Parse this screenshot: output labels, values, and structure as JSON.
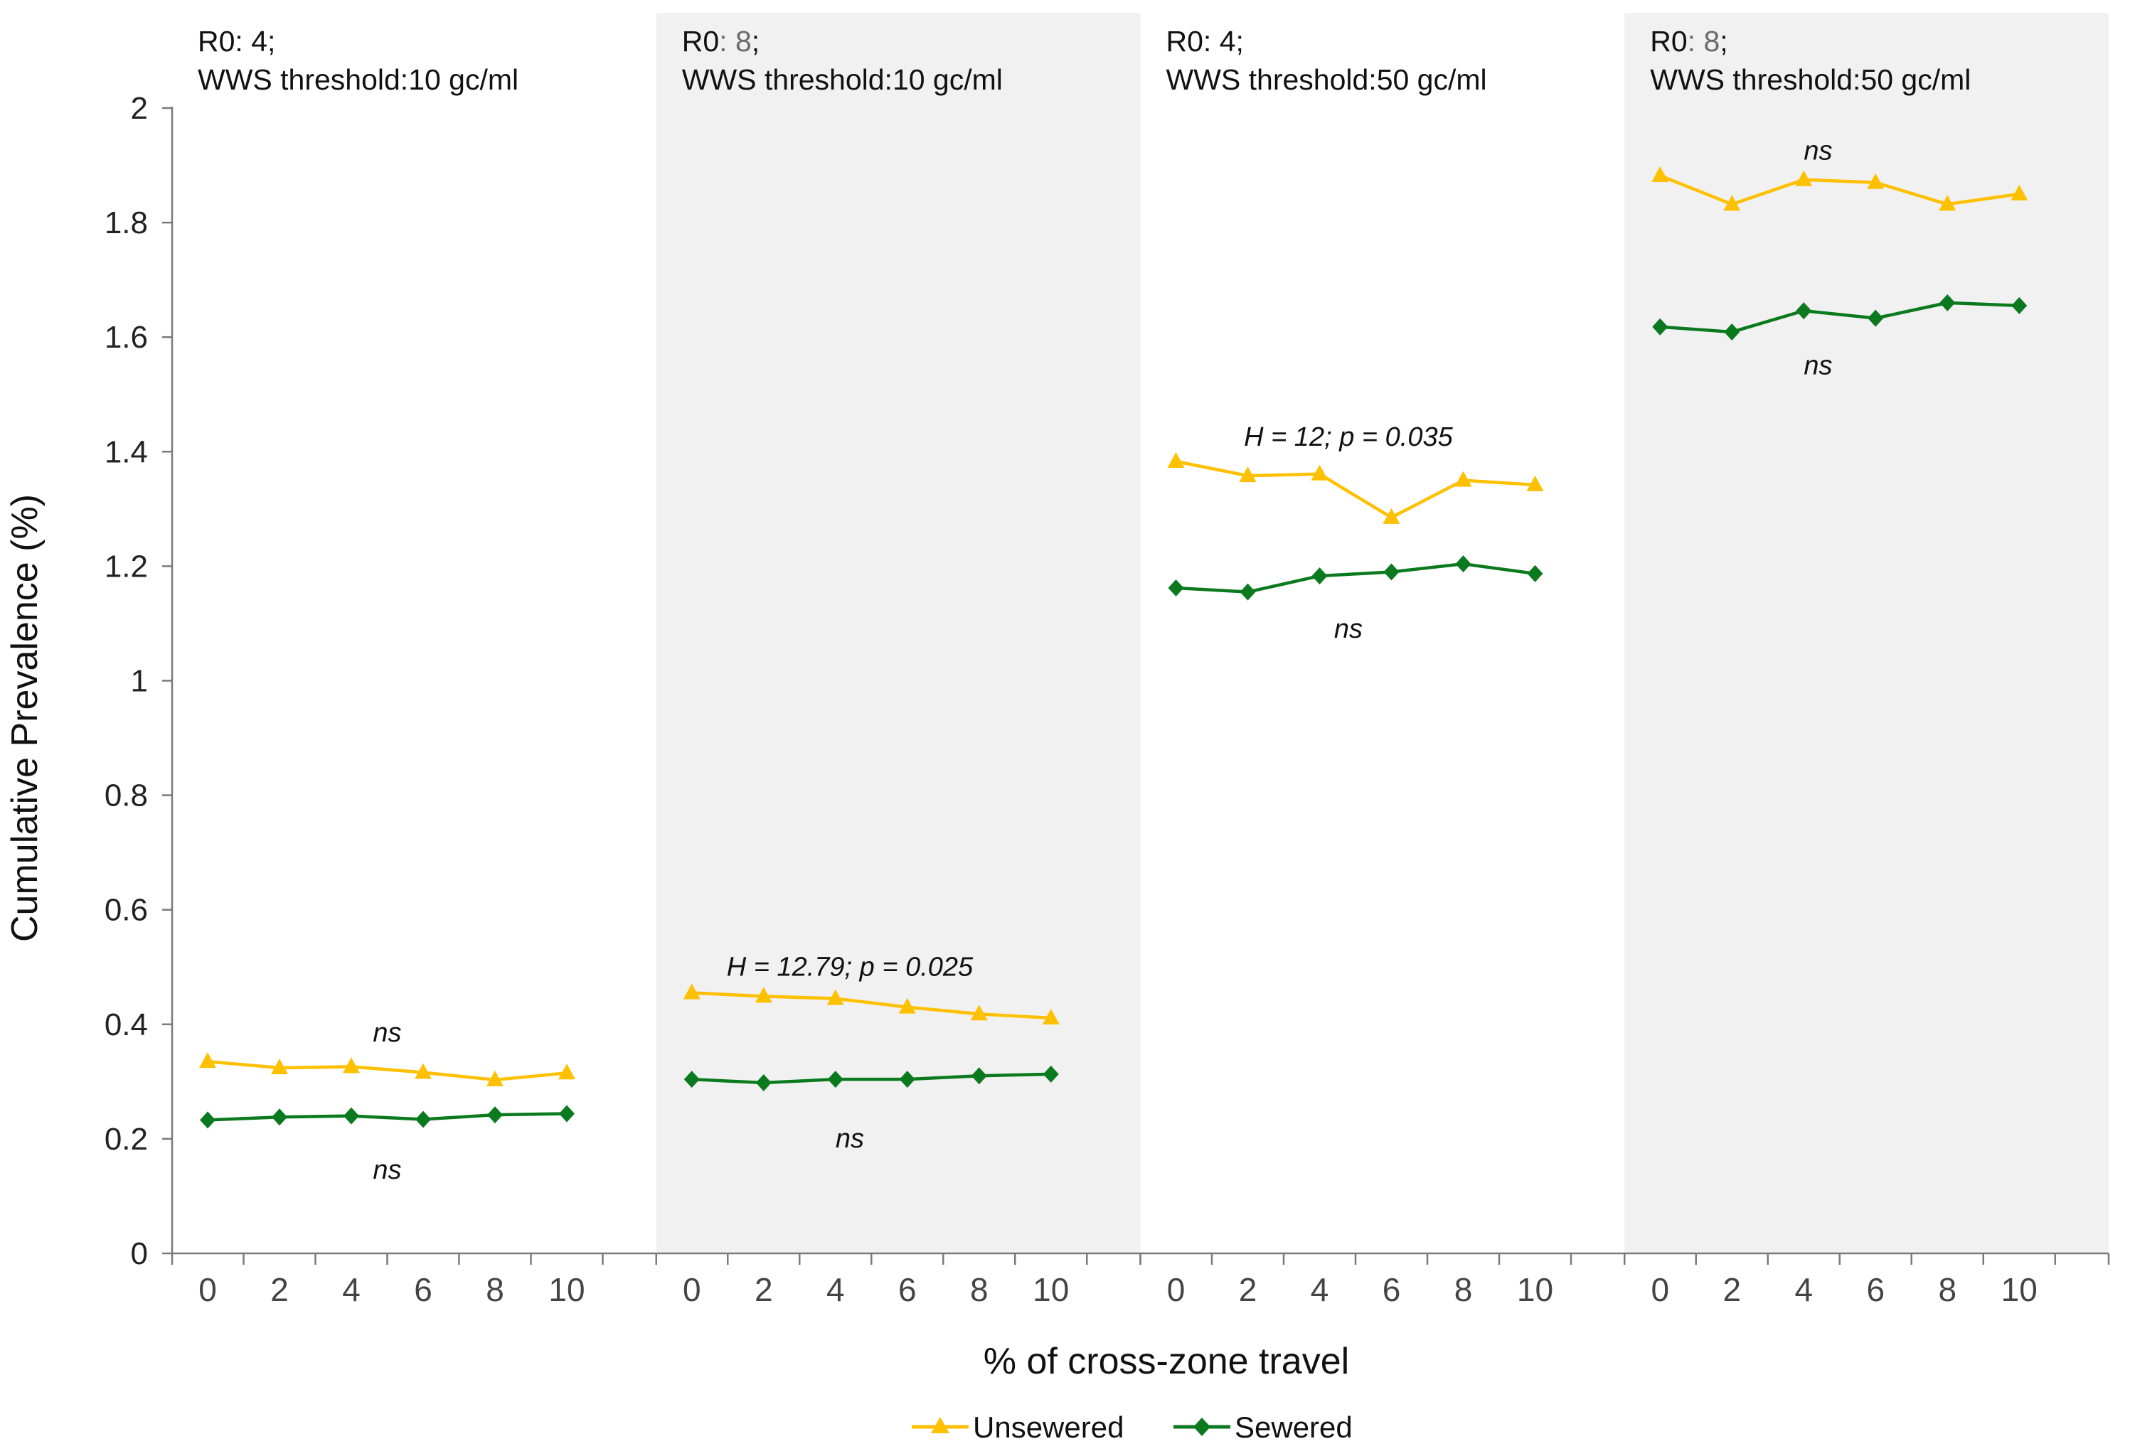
{
  "chart_data": {
    "type": "line",
    "ylabel": "Cumulative Prevalence (%)",
    "xlabel": "% of cross-zone travel",
    "ylim": [
      0,
      2
    ],
    "yticks": [
      "0",
      "0.2",
      "0.4",
      "0.6",
      "0.8",
      "1",
      "1.2",
      "1.4",
      "1.6",
      "1.8",
      "2"
    ],
    "categories": [
      "0",
      "2",
      "4",
      "6",
      "8",
      "10"
    ],
    "series_names": [
      "Unsewered",
      "Sewered"
    ],
    "colors": {
      "Unsewered": "#FFC000",
      "Sewered": "#0B7A1E",
      "shade": "#F1F1F1"
    },
    "panels": [
      {
        "r0_label": "R0",
        "r0_sep": ": ",
        "r0_value": "4;",
        "threshold_label": "WWS threshold:10 gc/ml",
        "shaded": false,
        "series": [
          {
            "name": "Unsewered",
            "values": [
              0.335,
              0.324,
              0.326,
              0.316,
              0.303,
              0.315
            ]
          },
          {
            "name": "Sewered",
            "values": [
              0.233,
              0.238,
              0.24,
              0.234,
              0.242,
              0.244
            ]
          }
        ],
        "annotations": [
          {
            "text": "ns",
            "near": "Unsewered",
            "position": "above",
            "at_value": 0.385,
            "at_x": 2.5
          },
          {
            "text": "ns",
            "near": "Sewered",
            "position": "below",
            "at_value": 0.145,
            "at_x": 2.5
          }
        ]
      },
      {
        "r0_label": "R0",
        "r0_sep": ": ",
        "r0_value": "8;",
        "threshold_label": "WWS threshold:10 gc/ml",
        "shaded": true,
        "series": [
          {
            "name": "Unsewered",
            "values": [
              0.455,
              0.449,
              0.445,
              0.43,
              0.418,
              0.411
            ]
          },
          {
            "name": "Sewered",
            "values": [
              0.304,
              0.298,
              0.304,
              0.304,
              0.31,
              0.313
            ]
          }
        ],
        "annotations": [
          {
            "text": "H = 12.79; p = 0.025",
            "near": "Unsewered",
            "position": "above",
            "at_value": 0.5,
            "at_x": 2.2
          },
          {
            "text": "ns",
            "near": "Sewered",
            "position": "below",
            "at_value": 0.2,
            "at_x": 2.2
          }
        ]
      },
      {
        "r0_label": "R0",
        "r0_sep": ": ",
        "r0_value": "4;",
        "threshold_label": "WWS threshold:50 gc/ml",
        "shaded": false,
        "series": [
          {
            "name": "Unsewered",
            "values": [
              1.383,
              1.358,
              1.361,
              1.285,
              1.35,
              1.342
            ]
          },
          {
            "name": "Sewered",
            "values": [
              1.162,
              1.155,
              1.183,
              1.19,
              1.204,
              1.187
            ]
          }
        ],
        "annotations": [
          {
            "text": "H = 12; p = 0.035",
            "near": "Unsewered",
            "position": "above",
            "at_value": 1.425,
            "at_x": 2.4
          },
          {
            "text": "ns",
            "near": "Sewered",
            "position": "below",
            "at_value": 1.09,
            "at_x": 2.4
          }
        ]
      },
      {
        "r0_label": "R0",
        "r0_sep": ": ",
        "r0_value": "8;",
        "threshold_label": "WWS threshold:50 gc/ml",
        "shaded": true,
        "series": [
          {
            "name": "Unsewered",
            "values": [
              1.882,
              1.832,
              1.875,
              1.87,
              1.832,
              1.85
            ]
          },
          {
            "name": "Sewered",
            "values": [
              1.618,
              1.609,
              1.646,
              1.633,
              1.66,
              1.655
            ]
          }
        ],
        "annotations": [
          {
            "text": "ns",
            "near": "Unsewered",
            "position": "above",
            "at_value": 1.925,
            "at_x": 2.2
          },
          {
            "text": "ns",
            "near": "Sewered",
            "position": "below",
            "at_value": 1.55,
            "at_x": 2.2
          }
        ]
      }
    ],
    "legend": {
      "placement": "bottom-center",
      "entries": [
        "Unsewered",
        "Sewered"
      ]
    }
  }
}
